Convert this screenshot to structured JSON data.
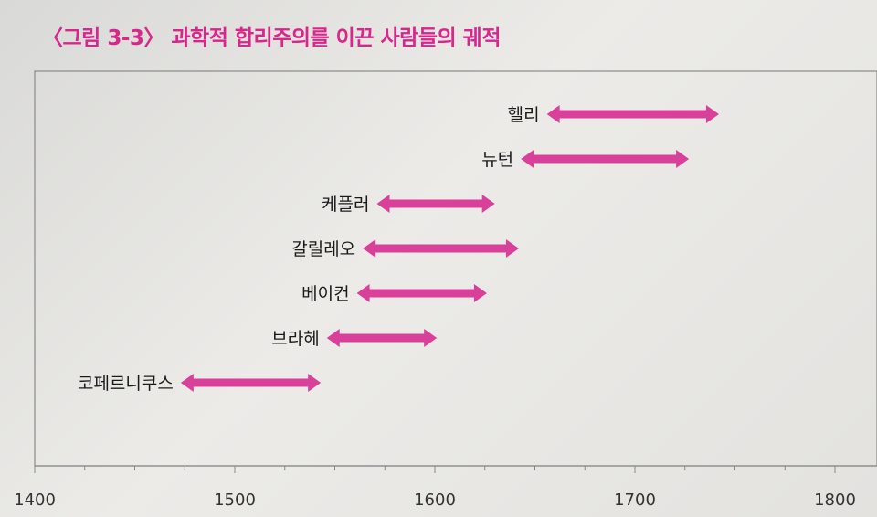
{
  "title": "〈그림 3-3〉 과학적 합리주의를 이끈 사람들의 궤적",
  "chart_data": {
    "type": "bar",
    "subtype": "range-timeline",
    "title": "〈그림 3-3〉 과학적 합리주의를 이끈 사람들의 궤적",
    "xlim": [
      1400,
      1800
    ],
    "xticks": [
      1400,
      1500,
      1600,
      1700,
      1800
    ],
    "grid": false,
    "colors": {
      "bar": "#d9409a",
      "title": "#d9268a",
      "axis": "#888888"
    },
    "series": [
      {
        "name": "헬리",
        "start": 1656,
        "end": 1742
      },
      {
        "name": "뉴턴",
        "start": 1643,
        "end": 1727
      },
      {
        "name": "케플러",
        "start": 1571,
        "end": 1630
      },
      {
        "name": "갈릴레오",
        "start": 1564,
        "end": 1642
      },
      {
        "name": "베이컨",
        "start": 1561,
        "end": 1626
      },
      {
        "name": "브라헤",
        "start": 1546,
        "end": 1601
      },
      {
        "name": "코페르니쿠스",
        "start": 1473,
        "end": 1543
      }
    ]
  }
}
